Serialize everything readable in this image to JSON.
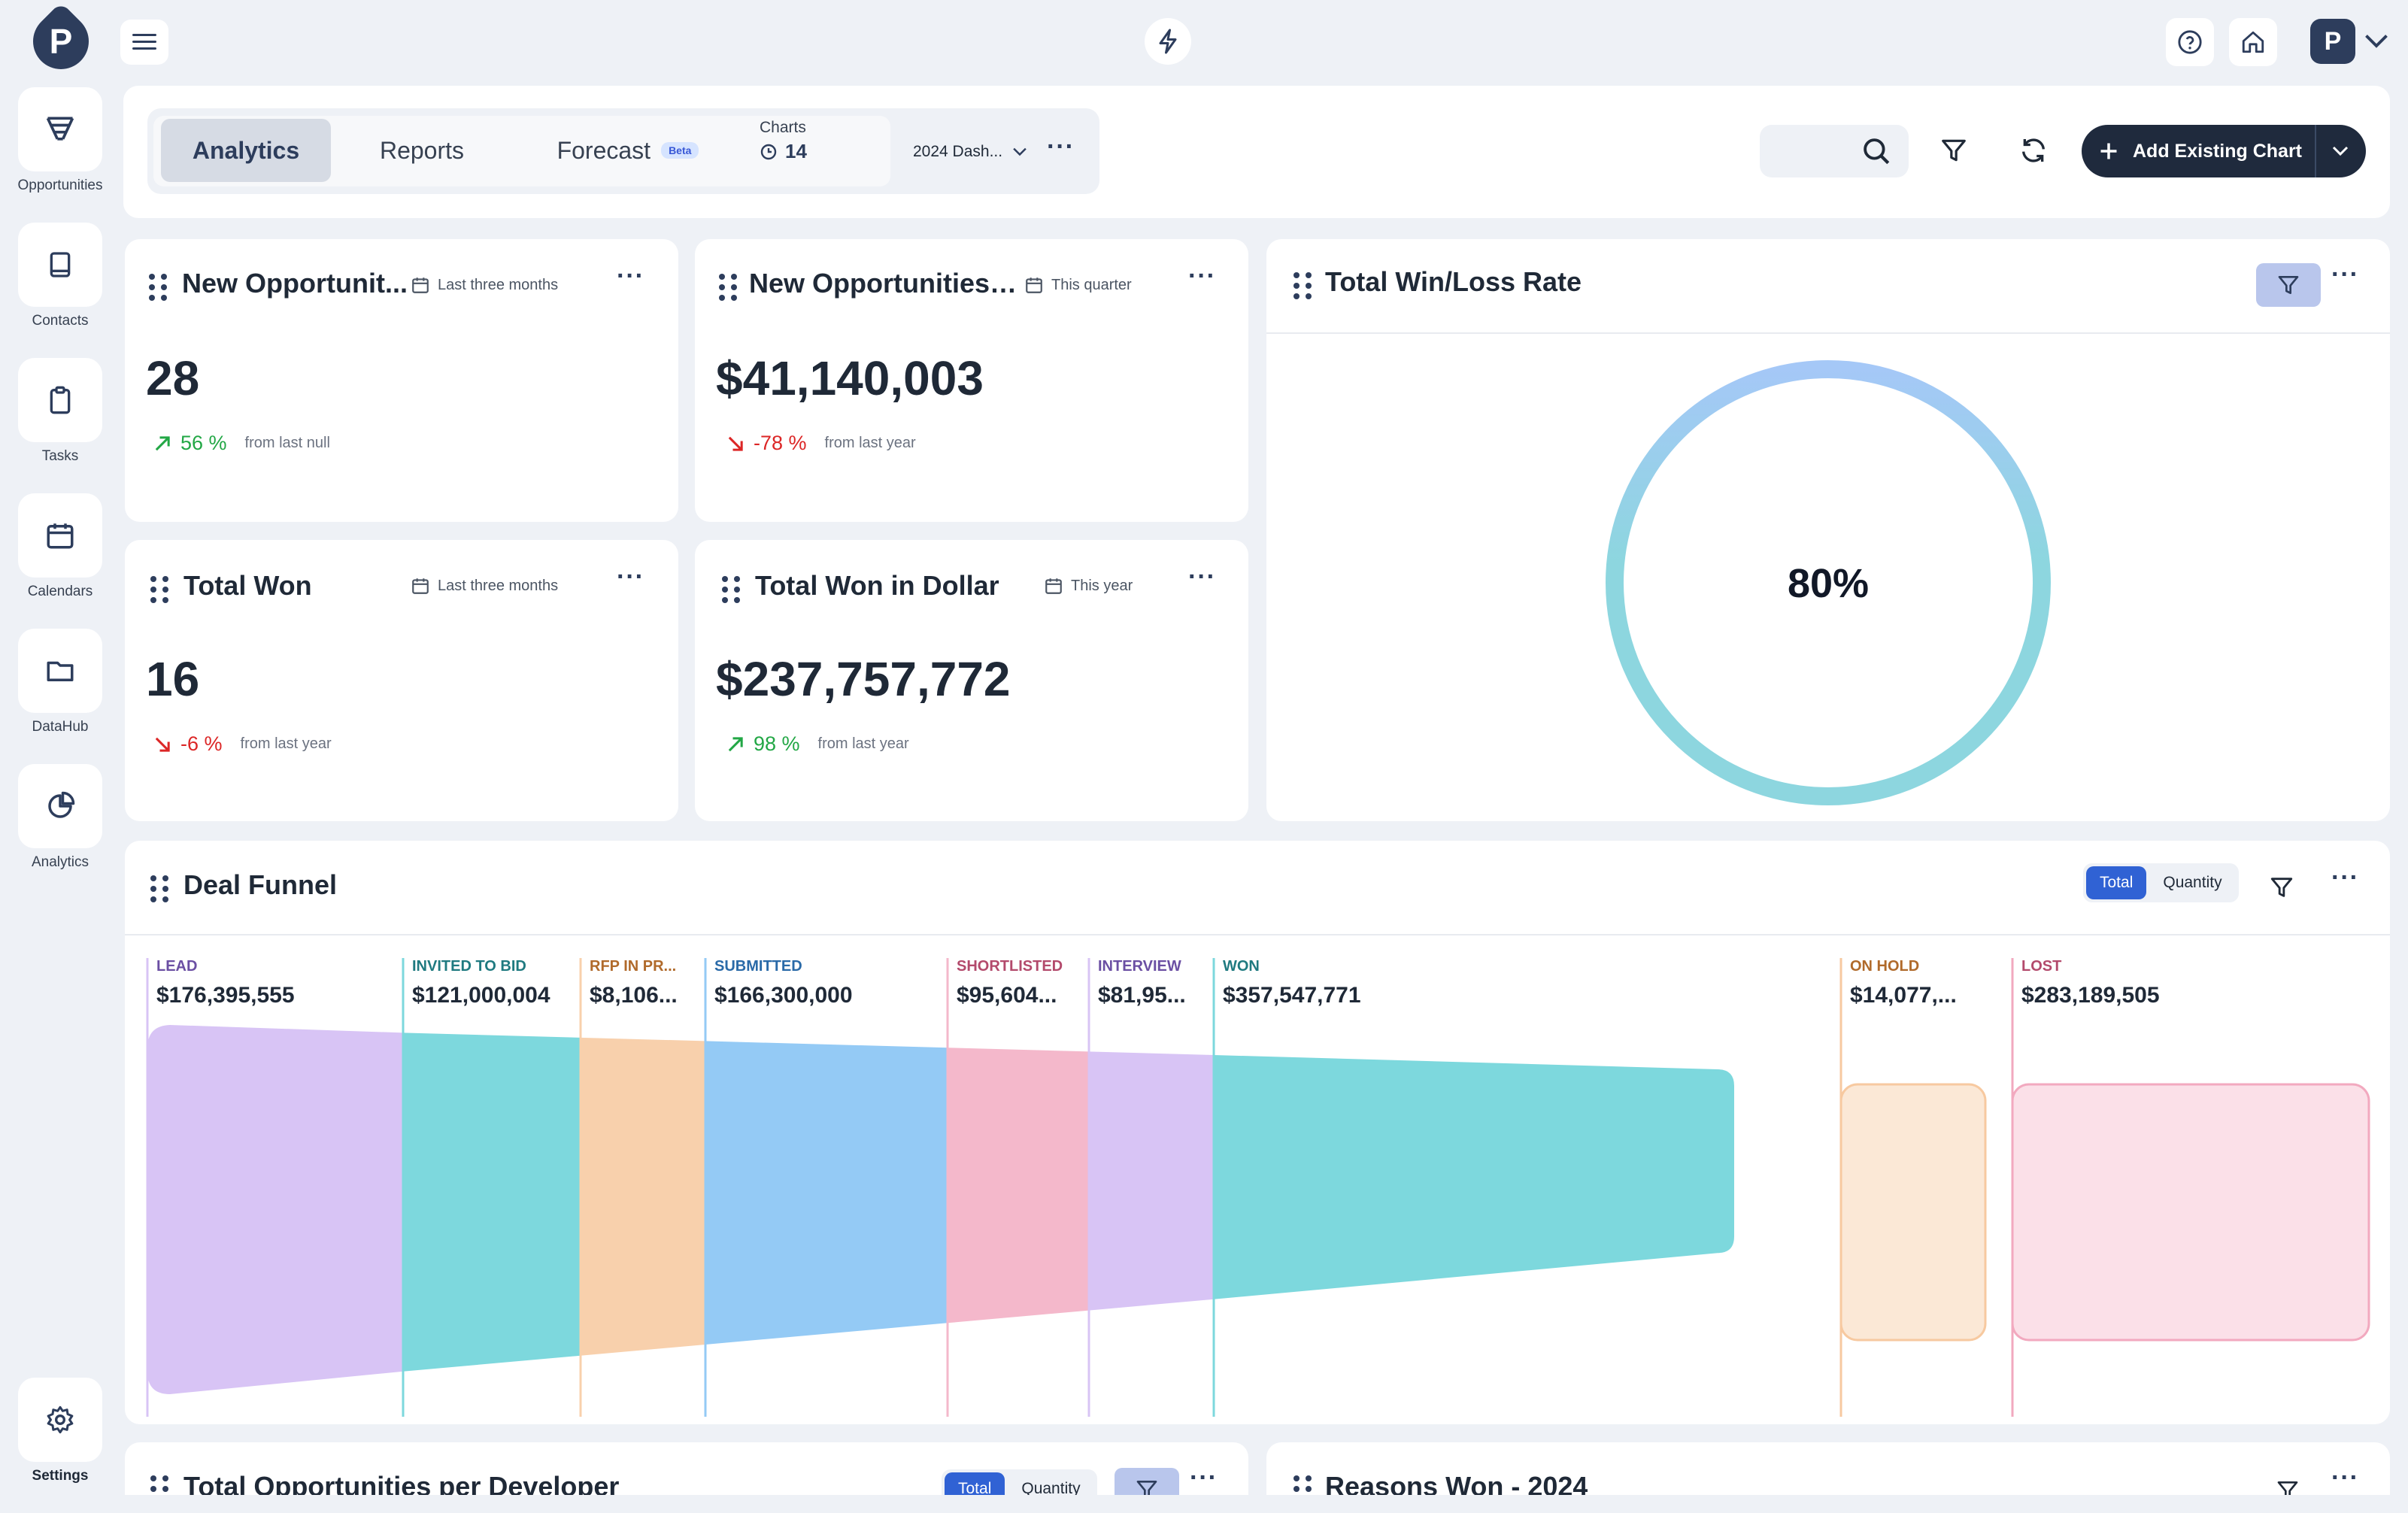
{
  "app": {
    "logo_letter": "P"
  },
  "sidebar": {
    "items": [
      {
        "label": "Opportunities",
        "icon": "filter-funnel-icon"
      },
      {
        "label": "Contacts",
        "icon": "book-icon"
      },
      {
        "label": "Tasks",
        "icon": "clipboard-icon"
      },
      {
        "label": "Calendars",
        "icon": "calendar-icon"
      },
      {
        "label": "DataHub",
        "icon": "folder-icon"
      },
      {
        "label": "Analytics",
        "icon": "pie-chart-icon"
      }
    ],
    "settings_label": "Settings"
  },
  "header": {
    "tabs": [
      {
        "label": "Analytics"
      },
      {
        "label": "Reports"
      },
      {
        "label": "Forecast"
      }
    ],
    "beta_badge": "Beta",
    "charts_label": "Charts",
    "charts_count": "14",
    "dashboard_select": "2024 Dash...",
    "add_chart_label": "Add Existing Chart"
  },
  "kpis": [
    {
      "title": "New Opportunit...",
      "period": "Last three months",
      "value": "28",
      "delta": "56 %",
      "direction": "up",
      "from": "from last null"
    },
    {
      "title": "New Opportunities i...",
      "period": "This quarter",
      "value": "$41,140,003",
      "delta": "-78 %",
      "direction": "down",
      "from": "from last year"
    },
    {
      "title": "Total Won",
      "period": "Last three months",
      "value": "16",
      "delta": "-6 %",
      "direction": "down",
      "from": "from last year"
    },
    {
      "title": "Total Won in Dollar",
      "period": "This year",
      "value": "$237,757,772",
      "delta": "98 %",
      "direction": "up",
      "from": "from last year"
    }
  ],
  "winloss": {
    "title": "Total Win/Loss Rate",
    "value_label": "80%",
    "value": 0.8
  },
  "funnel": {
    "title": "Deal Funnel",
    "toggle": [
      "Total",
      "Quantity"
    ],
    "active_toggle": "Total",
    "stages": [
      {
        "label": "LEAD",
        "value": "$176,395,555",
        "color": "#d8c4f5",
        "labelColor": "#6b4fa3"
      },
      {
        "label": "INVITED TO BID",
        "value": "$121,000,004",
        "color": "#7dd8dd",
        "labelColor": "#1f7a80"
      },
      {
        "label": "RFP IN PR...",
        "value": "$8,106...",
        "color": "#f8d0ac",
        "labelColor": "#b06a2b"
      },
      {
        "label": "SUBMITTED",
        "value": "$166,300,000",
        "color": "#94caf5",
        "labelColor": "#2a6aa8"
      },
      {
        "label": "SHORTLISTED",
        "value": "$95,604...",
        "color": "#f4b8cb",
        "labelColor": "#b34a6c"
      },
      {
        "label": "INTERVIEW",
        "value": "$81,95...",
        "color": "#d8c4f5",
        "labelColor": "#6b4fa3"
      },
      {
        "label": "WON",
        "value": "$357,547,771",
        "color": "#7dd8dd",
        "labelColor": "#1f7a80"
      }
    ],
    "side_stages": [
      {
        "label": "ON HOLD",
        "value": "$14,077,...",
        "color": "#fbe8d6",
        "stroke": "#f7c9a0",
        "labelColor": "#b06a2b"
      },
      {
        "label": "LOST",
        "value": "$283,189,505",
        "color": "#fbe0e8",
        "stroke": "#f2a9bf",
        "labelColor": "#b34a6c"
      }
    ]
  },
  "bottom": {
    "left_title": "Total Opportunities per Developer",
    "left_toggle": [
      "Total",
      "Quantity"
    ],
    "right_title": "Reasons Won - 2024"
  }
}
